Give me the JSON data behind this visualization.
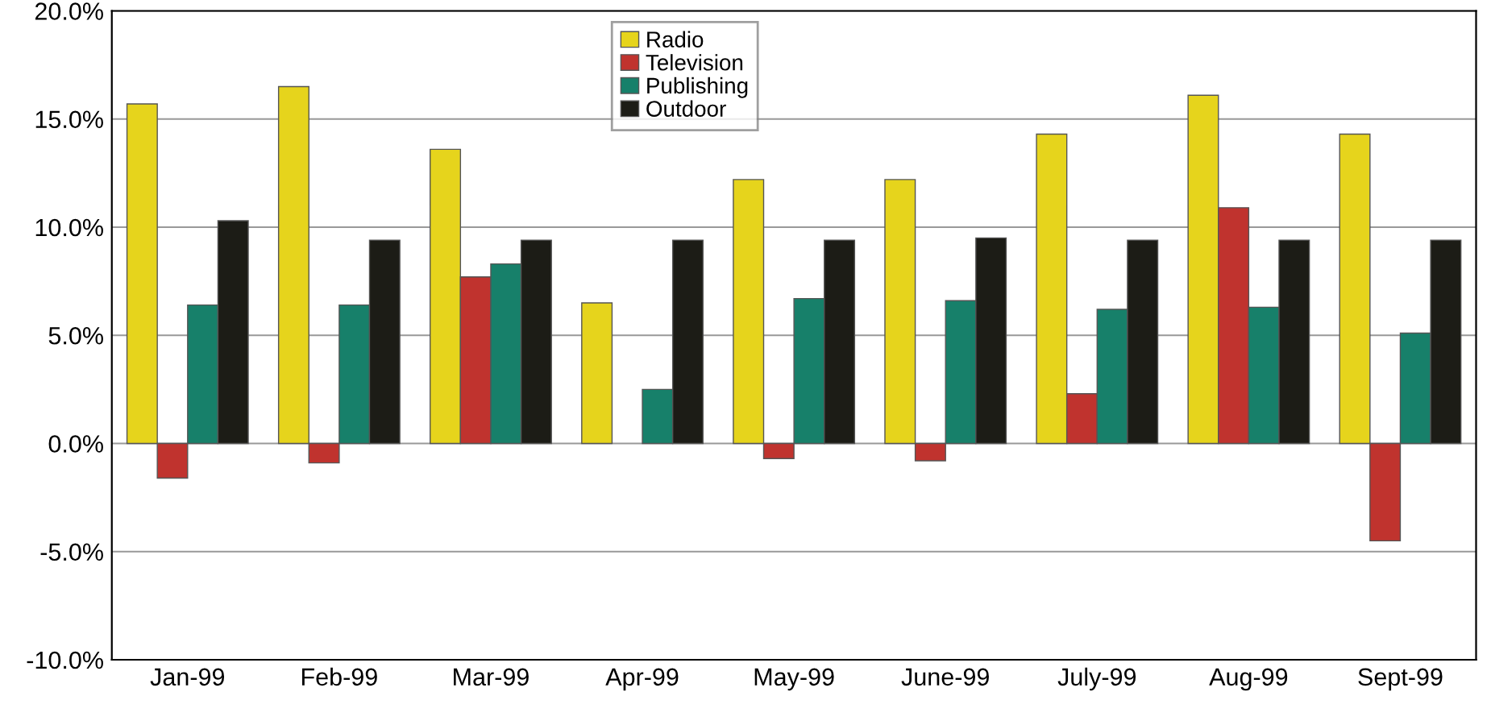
{
  "chart_data": {
    "type": "bar",
    "categories": [
      "Jan-99",
      "Feb-99",
      "Mar-99",
      "Apr-99",
      "May-99",
      "June-99",
      "July-99",
      "Aug-99",
      "Sept-99"
    ],
    "series": [
      {
        "name": "Radio",
        "color": "#e6d41c",
        "values": [
          15.7,
          16.5,
          13.6,
          6.5,
          12.2,
          12.2,
          14.3,
          16.1,
          14.3
        ]
      },
      {
        "name": "Television",
        "color": "#c0332e",
        "values": [
          -1.6,
          -0.9,
          7.7,
          null,
          -0.7,
          -0.8,
          2.3,
          10.9,
          -4.5
        ]
      },
      {
        "name": "Publishing",
        "color": "#17806a",
        "values": [
          6.4,
          6.4,
          8.3,
          2.5,
          6.7,
          6.6,
          6.2,
          6.3,
          5.1
        ]
      },
      {
        "name": "Outdoor",
        "color": "#1c1c16",
        "values": [
          10.3,
          9.4,
          9.4,
          9.4,
          9.4,
          9.5,
          9.4,
          9.4,
          9.4
        ]
      }
    ],
    "ylim": [
      -10,
      20
    ],
    "yticks": [
      {
        "value": -10,
        "label": "-10.0%"
      },
      {
        "value": -5,
        "label": "-5.0%"
      },
      {
        "value": 0,
        "label": "0.0%"
      },
      {
        "value": 5,
        "label": "5.0%"
      },
      {
        "value": 10,
        "label": "10.0%"
      },
      {
        "value": 15,
        "label": "15.0%"
      },
      {
        "value": 20,
        "label": "20.0%"
      }
    ],
    "grid": "y",
    "legend": "top"
  }
}
